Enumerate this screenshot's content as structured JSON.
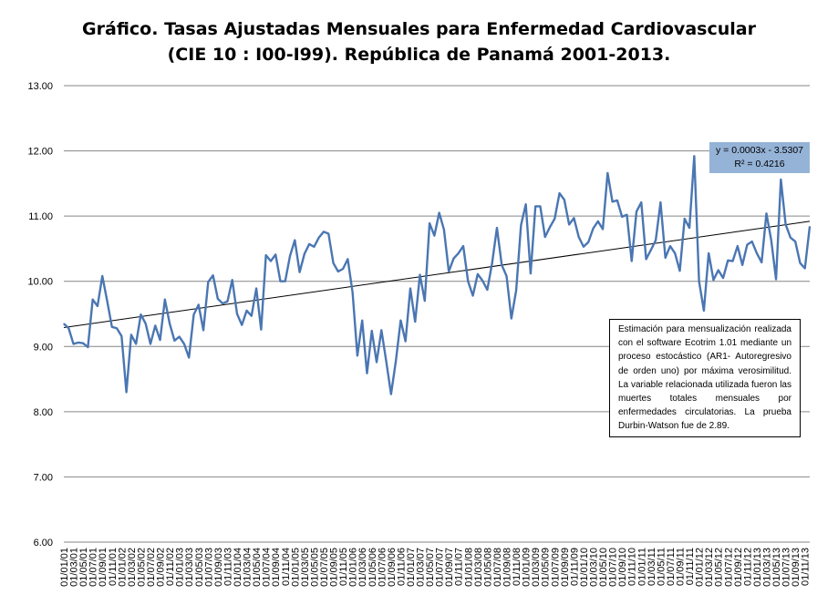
{
  "chart_data": {
    "type": "line",
    "title": "Gráfico. Tasas Ajustadas Mensuales para Enfermedad Cardiovascular\n(CIE 10 : I00-I99). República de Panamá 2001-2013.",
    "xlabel": "",
    "ylabel": "",
    "ylim": [
      6.0,
      13.0
    ],
    "yticks": [
      "6.00",
      "7.00",
      "8.00",
      "9.00",
      "10.00",
      "11.00",
      "12.00",
      "13.00"
    ],
    "grid": "horizontal",
    "legend": "none",
    "x_tick_labels": [
      "01/01/01",
      "01/03/01",
      "01/05/01",
      "01/07/01",
      "01/09/01",
      "01/11/01",
      "01/01/02",
      "01/03/02",
      "01/05/02",
      "01/07/02",
      "01/09/02",
      "01/11/02",
      "01/01/03",
      "01/03/03",
      "01/05/03",
      "01/07/03",
      "01/09/03",
      "01/11/03",
      "01/01/04",
      "01/03/04",
      "01/05/04",
      "01/07/04",
      "01/09/04",
      "01/11/04",
      "01/01/05",
      "01/03/05",
      "01/05/05",
      "01/07/05",
      "01/09/05",
      "01/11/05",
      "01/01/06",
      "01/03/06",
      "01/05/06",
      "01/07/06",
      "01/09/06",
      "01/11/06",
      "01/01/07",
      "01/03/07",
      "01/05/07",
      "01/07/07",
      "01/09/07",
      "01/11/07",
      "01/01/08",
      "01/03/08",
      "01/05/08",
      "01/07/08",
      "01/09/08",
      "01/11/08",
      "01/01/09",
      "01/03/09",
      "01/05/09",
      "01/07/09",
      "01/09/09",
      "01/11/09",
      "01/01/10",
      "01/03/10",
      "01/05/10",
      "01/07/10",
      "01/09/10",
      "01/11/10",
      "01/01/11",
      "01/03/11",
      "01/05/11",
      "01/07/11",
      "01/09/11",
      "01/11/11",
      "01/01/12",
      "01/03/12",
      "01/05/12",
      "01/07/12",
      "01/09/12",
      "01/11/12",
      "01/01/13",
      "01/03/13",
      "01/05/13",
      "01/07/13",
      "01/09/13",
      "01/11/13"
    ],
    "series": [
      {
        "values": [
          9.35,
          9.28,
          9.04,
          9.06,
          9.05,
          8.99,
          9.72,
          9.62,
          10.08,
          9.7,
          9.3,
          9.28,
          9.16,
          8.3,
          9.18,
          9.04,
          9.49,
          9.35,
          9.04,
          9.32,
          9.1,
          9.72,
          9.35,
          9.09,
          9.15,
          9.04,
          8.83,
          9.49,
          9.64,
          9.25,
          9.99,
          10.09,
          9.73,
          9.66,
          9.69,
          10.02,
          9.5,
          9.33,
          9.55,
          9.47,
          9.89,
          9.26,
          10.4,
          10.31,
          10.41,
          10.0,
          10.0,
          10.39,
          10.63,
          10.14,
          10.42,
          10.57,
          10.53,
          10.67,
          10.76,
          10.73,
          10.28,
          10.15,
          10.19,
          10.34,
          9.83,
          8.86,
          9.4,
          8.59,
          9.24,
          8.76,
          9.25,
          8.77,
          8.27,
          8.78,
          9.4,
          9.08,
          9.89,
          9.38,
          10.1,
          9.7,
          10.89,
          10.7,
          11.05,
          10.79,
          10.15,
          10.35,
          10.43,
          10.54,
          10.0,
          9.78,
          10.11,
          10.01,
          9.87,
          10.28,
          10.82,
          10.25,
          10.08,
          9.43,
          9.86,
          10.86,
          11.18,
          10.12,
          11.15,
          11.15,
          10.68,
          10.83,
          10.96,
          11.35,
          11.25,
          10.87,
          10.97,
          10.68,
          10.53,
          10.6,
          10.81,
          10.92,
          10.8,
          11.66,
          11.22,
          11.24,
          10.99,
          11.02,
          10.31,
          11.07,
          11.21,
          10.34,
          10.48,
          10.63,
          11.21,
          10.36,
          10.54,
          10.43,
          10.16,
          10.96,
          10.82,
          11.92,
          10.0,
          9.55,
          10.43,
          10.02,
          10.17,
          10.05,
          10.32,
          10.31,
          10.54,
          10.25,
          10.56,
          10.61,
          10.43,
          10.29,
          11.04,
          10.63,
          10.03,
          11.56,
          10.87,
          10.67,
          10.61,
          10.28,
          10.2,
          10.84
        ]
      }
    ],
    "trendline": {
      "slope_label": "y = 0.0003x - 3.5307",
      "r2_label": "R² = 0.4216",
      "start": 9.29,
      "end": 10.92
    },
    "note": "Estimación para mensualización realizada con el software Ecotrim 1.01 mediante un proceso estocástico (AR1- Autoregresivo de orden uno) por máxima verosimilitud. La variable relacionada utilizada fueron las muertes totales mensuales por enfermedades circulatorias. La prueba Durbin-Watson fue de 2.89.",
    "colors": {
      "series": "#4a76b2",
      "trendline": "#000000",
      "grid": "#868686",
      "trend_label_bg": "#95b3d7"
    }
  }
}
